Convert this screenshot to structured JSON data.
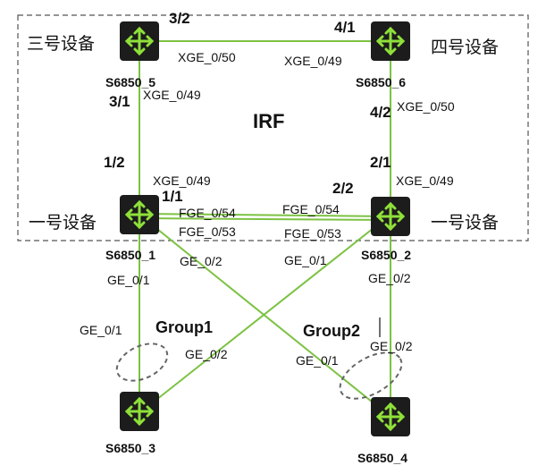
{
  "irf_label": "IRF",
  "colors": {
    "link": "#7cc242",
    "node_bg": "#1c1c1c",
    "node_icon": "#8fe03a",
    "boundary": "#555555",
    "ellipse": "#666666"
  },
  "devices": {
    "s5": {
      "name": "S6850_5",
      "cn": "三号设备",
      "icon": "router-icon"
    },
    "s6": {
      "name": "S6850_6",
      "cn": "四号设备",
      "icon": "router-icon"
    },
    "s1": {
      "name": "S6850_1",
      "cn": "一号设备",
      "icon": "router-icon"
    },
    "s2": {
      "name": "S6850_2",
      "cn": "一号设备",
      "icon": "router-icon"
    },
    "s3": {
      "name": "S6850_3",
      "icon": "router-icon"
    },
    "s4": {
      "name": "S6850_4",
      "icon": "router-icon"
    }
  },
  "irf_ports": {
    "p3_2": "3/2",
    "p4_1": "4/1",
    "p3_1": "3/1",
    "p4_2": "4/2",
    "p1_2": "1/2",
    "p2_1": "2/1",
    "p1_1": "1/1",
    "p2_2": "2/2"
  },
  "interfaces": {
    "s5_xge50": "XGE_0/50",
    "s6_xge49": "XGE_0/49",
    "s5_xge49": "XGE_0/49",
    "s6_xge50": "XGE_0/50",
    "s1_xge49": "XGE_0/49",
    "s2_xge49": "XGE_0/49",
    "s1_fge54": "FGE_0/54",
    "s2_fge54": "FGE_0/54",
    "s1_fge53": "FGE_0/53",
    "s2_fge53": "FGE_0/53",
    "s1_ge2": "GE_0/2",
    "s2_ge1": "GE_0/1",
    "s1_ge1": "GE_0/1",
    "s2_ge2": "GE_0/2",
    "s3_ge1": "GE_0/1",
    "s3_ge2": "GE_0/2",
    "s4_ge1": "GE_0/1",
    "s4_ge2": "GE_0/2"
  },
  "groups": {
    "g1": "Group1",
    "g2": "Group2"
  }
}
